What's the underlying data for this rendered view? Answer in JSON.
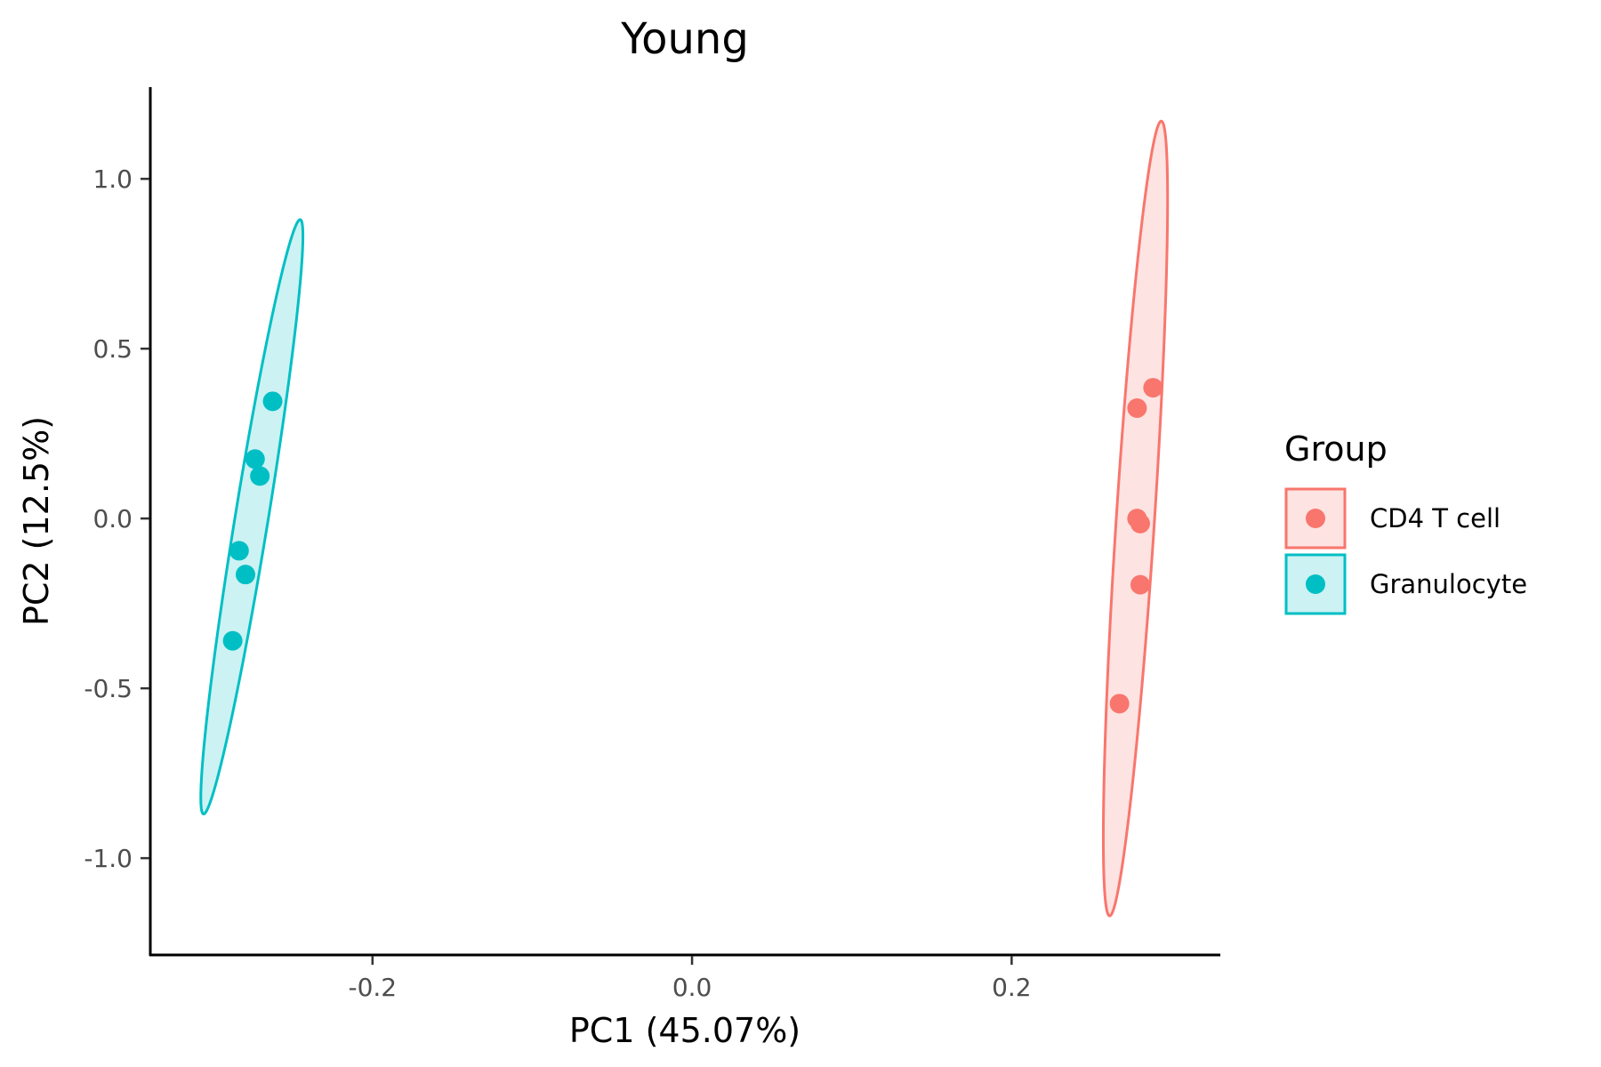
{
  "chart_data": {
    "type": "scatter",
    "title": "Young",
    "xlabel": "PC1 (45.07%)",
    "ylabel": "PC2 (12.5%)",
    "xlim": [
      -0.3385,
      0.3295
    ],
    "ylim": [
      -1.285,
      1.27
    ],
    "xticks": [
      -0.2,
      0.0,
      0.2
    ],
    "xtick_labels": [
      "-0.2",
      "0.0",
      "0.2"
    ],
    "yticks": [
      -1.0,
      -0.5,
      0.0,
      0.5,
      1.0
    ],
    "ytick_labels": [
      "-1.0",
      "-0.5",
      "0.0",
      "0.5",
      "1.0"
    ],
    "grid": false,
    "legend": {
      "title": "Group",
      "placement": "right"
    },
    "series": [
      {
        "name": "CD4 T cell",
        "color": "#f8766d",
        "fill": "#fde3e2",
        "points": [
          {
            "x": 0.2885,
            "y": 0.385
          },
          {
            "x": 0.2785,
            "y": 0.325
          },
          {
            "x": 0.2785,
            "y": 0.0
          },
          {
            "x": 0.2805,
            "y": -0.015
          },
          {
            "x": 0.2805,
            "y": -0.195
          },
          {
            "x": 0.2675,
            "y": -0.545
          }
        ],
        "ellipse": {
          "cx": 0.2775,
          "cy": 0.0,
          "rx": 0.012,
          "ry": 1.17,
          "tilt_x_per_y": 0.0138
        }
      },
      {
        "name": "Granulocyte",
        "color": "#00bfc4",
        "fill": "#ccf2f3",
        "points": [
          {
            "x": -0.2625,
            "y": 0.345
          },
          {
            "x": -0.2735,
            "y": 0.175
          },
          {
            "x": -0.2705,
            "y": 0.125
          },
          {
            "x": -0.2835,
            "y": -0.095
          },
          {
            "x": -0.2795,
            "y": -0.165
          },
          {
            "x": -0.2875,
            "y": -0.36
          }
        ],
        "ellipse": {
          "cx": -0.2755,
          "cy": 0.005,
          "rx": 0.0105,
          "ry": 0.875,
          "tilt_x_per_y": 0.0345
        }
      }
    ]
  }
}
